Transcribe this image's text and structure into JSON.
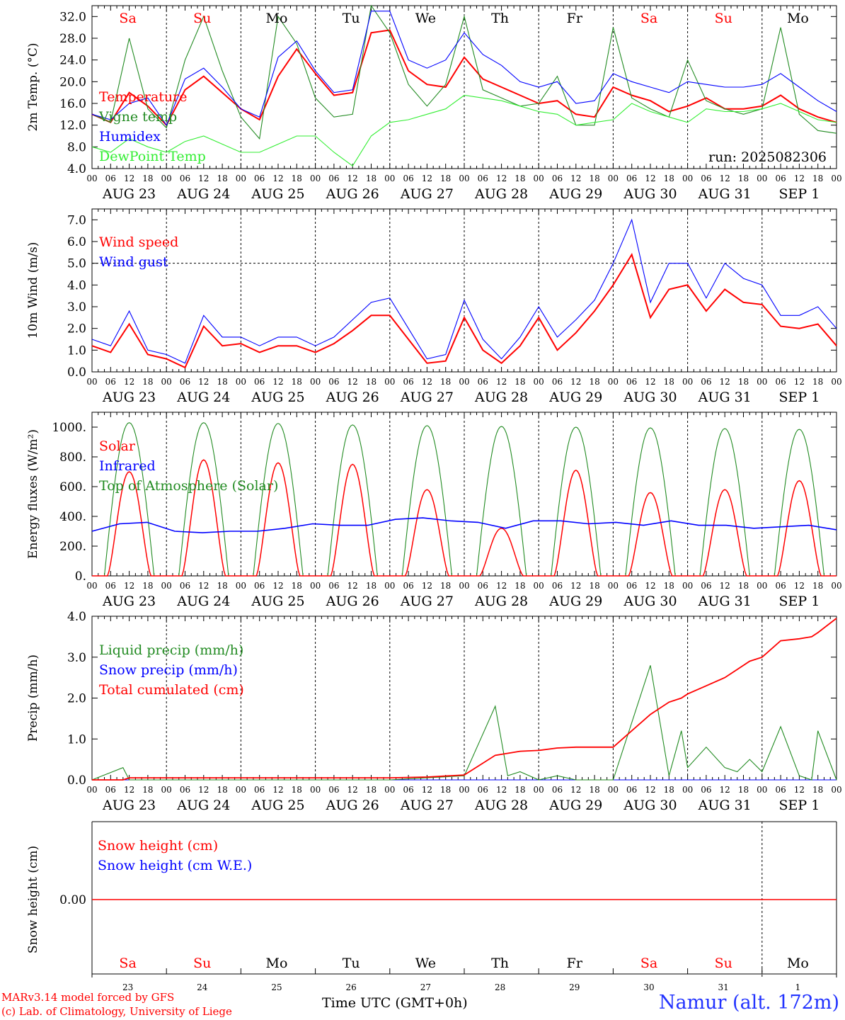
{
  "chart_data": [
    {
      "type": "line",
      "ylabel": "2m Temp. (°C)",
      "ylim": [
        4,
        34
      ],
      "yticks": [
        "4.0",
        "8.0",
        "12.0",
        "16.0",
        "20.0",
        "24.0",
        "28.0",
        "32.0"
      ],
      "ytick_values": [
        4,
        8,
        12,
        16,
        20,
        24,
        28,
        32
      ],
      "legend": [
        {
          "label": "Temperature",
          "color": "#ff0000"
        },
        {
          "label": "Vigne temp",
          "color": "#228b22"
        },
        {
          "label": "Humidex",
          "color": "#0000ff"
        },
        {
          "label": "DewPoint Temp",
          "color": "#33ee33"
        }
      ],
      "annotation": "run: 2025082306",
      "x_hours": [
        0,
        6,
        12,
        18,
        24,
        30,
        36,
        42,
        48,
        54,
        60,
        66,
        72,
        78,
        84,
        90,
        96,
        102,
        108,
        114,
        120,
        126,
        132,
        138,
        144,
        150,
        156,
        162,
        168,
        174,
        180,
        186,
        192,
        198,
        204,
        210,
        216,
        222,
        228,
        234,
        240
      ],
      "series": [
        {
          "name": "Temperature",
          "color": "#ff0000",
          "values": [
            14,
            12.5,
            18,
            15.5,
            12,
            18.5,
            21,
            18,
            15,
            13,
            21,
            26,
            21.5,
            17.5,
            18,
            29,
            29.5,
            22,
            19.5,
            19,
            24.5,
            20.5,
            19,
            17.5,
            16,
            16.5,
            14,
            13.5,
            19,
            17.5,
            16.5,
            14.5,
            15.5,
            17,
            15,
            15,
            15.5,
            17.5,
            15,
            13.5,
            12.5
          ]
        },
        {
          "name": "Vigne temp",
          "color": "#228b22",
          "values": [
            14,
            12.5,
            28,
            15,
            11.5,
            24,
            32,
            22,
            13.5,
            9.5,
            32,
            27,
            17,
            13.5,
            14,
            34,
            29,
            19.5,
            15.5,
            19.5,
            32,
            18.5,
            17,
            15.5,
            16,
            21,
            12,
            12,
            30,
            17,
            15,
            13.5,
            24,
            16.5,
            15,
            14,
            15,
            30,
            14,
            11,
            10.5
          ]
        },
        {
          "name": "Humidex",
          "color": "#0000ff",
          "values": [
            14,
            13,
            16,
            17,
            12,
            20.5,
            22.5,
            19,
            15,
            13.5,
            24.5,
            27.5,
            22,
            18,
            18.5,
            33,
            33,
            24,
            22.5,
            24,
            29,
            25,
            23,
            20,
            19,
            20,
            16,
            16.5,
            21.5,
            20,
            19,
            18,
            20,
            19.5,
            19,
            19,
            19.5,
            21.5,
            19,
            16.5,
            14.5
          ]
        },
        {
          "name": "DewPoint Temp",
          "color": "#33ee33",
          "values": [
            8,
            7,
            9.5,
            8,
            7,
            9,
            10,
            8.5,
            7,
            7,
            8.5,
            10,
            10,
            7,
            4.5,
            10,
            12.5,
            13,
            14,
            15,
            17.5,
            17,
            16.5,
            15.5,
            14.5,
            14,
            12,
            12.5,
            13,
            16,
            14.5,
            13.5,
            12.5,
            15,
            14.5,
            14.5,
            15,
            16,
            14.5,
            13,
            12.5
          ]
        }
      ]
    },
    {
      "type": "line",
      "ylabel": "10m Wind (m/s)",
      "ylim": [
        0,
        7.5
      ],
      "yticks": [
        "0.0",
        "1.0",
        "2.0",
        "3.0",
        "4.0",
        "5.0",
        "6.0",
        "7.0"
      ],
      "ytick_values": [
        0,
        1,
        2,
        3,
        4,
        5,
        6,
        7
      ],
      "reference_line": 5.0,
      "legend": [
        {
          "label": "Wind speed",
          "color": "#ff0000"
        },
        {
          "label": "Wind gust",
          "color": "#0000ff"
        }
      ],
      "x_hours": [
        0,
        6,
        12,
        18,
        24,
        30,
        36,
        42,
        48,
        54,
        60,
        66,
        72,
        78,
        84,
        90,
        96,
        102,
        108,
        114,
        120,
        126,
        132,
        138,
        144,
        150,
        156,
        162,
        168,
        174,
        180,
        186,
        192,
        198,
        204,
        210,
        216,
        222,
        228,
        234,
        240
      ],
      "series": [
        {
          "name": "Wind speed",
          "color": "#ff0000",
          "values": [
            1.2,
            0.9,
            2.2,
            0.8,
            0.6,
            0.2,
            2.1,
            1.2,
            1.3,
            0.9,
            1.2,
            1.2,
            0.9,
            1.3,
            1.9,
            2.6,
            2.6,
            1.5,
            0.4,
            0.5,
            2.5,
            1.0,
            0.4,
            1.2,
            2.5,
            1.0,
            1.8,
            2.8,
            4.0,
            5.4,
            2.5,
            3.8,
            4.0,
            2.8,
            3.8,
            3.2,
            3.1,
            2.1,
            2.0,
            2.2,
            1.2
          ]
        },
        {
          "name": "Wind gust",
          "color": "#0000ff",
          "values": [
            1.5,
            1.2,
            2.8,
            1.0,
            0.8,
            0.4,
            2.6,
            1.6,
            1.6,
            1.2,
            1.6,
            1.6,
            1.2,
            1.6,
            2.4,
            3.2,
            3.4,
            2.0,
            0.6,
            0.8,
            3.3,
            1.5,
            0.6,
            1.6,
            3.0,
            1.6,
            2.4,
            3.3,
            5.0,
            7.0,
            3.2,
            5.0,
            5.0,
            3.4,
            5.0,
            4.3,
            4.0,
            2.6,
            2.6,
            3.0,
            2.0
          ]
        }
      ]
    },
    {
      "type": "line",
      "ylabel": "Energy fluxes (W/m²)",
      "ylim": [
        0,
        1100
      ],
      "yticks": [
        "0.",
        "200.",
        "400.",
        "600.",
        "800.",
        "1000."
      ],
      "ytick_values": [
        0,
        200,
        400,
        600,
        800,
        1000
      ],
      "legend": [
        {
          "label": "Solar",
          "color": "#ff0000"
        },
        {
          "label": "Infrared",
          "color": "#0000ff"
        },
        {
          "label": "Top of Atmosphere (Solar)",
          "color": "#228b22"
        }
      ],
      "toa_daily_peak": [
        1030,
        1030,
        1025,
        1015,
        1010,
        1005,
        1000,
        995,
        990,
        985
      ],
      "solar_daily_peak": [
        700,
        780,
        760,
        750,
        580,
        320,
        710,
        560,
        580,
        640
      ],
      "infrared_hourly_samples": [
        300,
        350,
        360,
        300,
        290,
        300,
        300,
        320,
        350,
        340,
        340,
        380,
        390,
        370,
        360,
        320,
        370,
        370,
        350,
        360,
        340,
        370,
        340,
        340,
        320,
        330,
        340,
        310
      ],
      "series": [
        {
          "name": "Solar",
          "color": "#ff0000",
          "values": [
            700,
            780,
            760,
            750,
            580,
            320,
            710,
            560,
            580,
            640
          ]
        },
        {
          "name": "Infrared",
          "color": "#0000ff",
          "values": [
            300,
            350,
            360,
            300,
            290,
            300,
            300,
            320,
            350,
            340,
            340,
            380,
            390,
            370,
            360,
            320,
            370,
            370,
            350,
            360,
            340,
            370,
            340,
            340,
            320,
            330,
            340,
            310
          ]
        },
        {
          "name": "Top of Atmosphere (Solar)",
          "color": "#228b22",
          "values": [
            1030,
            1030,
            1025,
            1015,
            1010,
            1005,
            1000,
            995,
            990,
            985
          ]
        }
      ]
    },
    {
      "type": "line",
      "ylabel": "Precip (mm/h)",
      "ylim": [
        0,
        4
      ],
      "yticks": [
        "0.0",
        "1.0",
        "2.0",
        "3.0",
        "4.0"
      ],
      "ytick_values": [
        0,
        1,
        2,
        3,
        4
      ],
      "legend": [
        {
          "label": "Liquid precip (mm/h)",
          "color": "#228b22"
        },
        {
          "label": "Snow precip (mm/h)",
          "color": "#0000ff"
        },
        {
          "label": "Total cumulated (cm)",
          "color": "#ff0000"
        }
      ],
      "x_hours": [
        0,
        10,
        12,
        14,
        24,
        48,
        96,
        108,
        120,
        130,
        134,
        138,
        144,
        150,
        156,
        168,
        180,
        186,
        190,
        192,
        198,
        204,
        208,
        212,
        216,
        222,
        228,
        232,
        234,
        240
      ],
      "series": [
        {
          "name": "Liquid precip (mm/h)",
          "color": "#228b22",
          "values": [
            0,
            0.3,
            0,
            0,
            0,
            0,
            0,
            0.05,
            0.1,
            1.8,
            0.1,
            0.2,
            0,
            0.1,
            0,
            0,
            2.8,
            0.1,
            1.2,
            0.3,
            0.8,
            0.3,
            0.2,
            0.5,
            0.2,
            1.3,
            0.1,
            0,
            1.2,
            0
          ]
        },
        {
          "name": "Snow precip (mm/h)",
          "color": "#0000ff",
          "values": [
            0,
            0,
            0,
            0,
            0,
            0,
            0,
            0,
            0,
            0,
            0,
            0,
            0,
            0,
            0,
            0,
            0,
            0,
            0,
            0,
            0,
            0,
            0,
            0,
            0,
            0,
            0,
            0,
            0,
            0
          ]
        },
        {
          "name": "Total cumulated (cm)",
          "color": "#ff0000",
          "values": [
            0,
            0,
            0.05,
            0.05,
            0.05,
            0.05,
            0.05,
            0.07,
            0.12,
            0.6,
            0.65,
            0.7,
            0.72,
            0.78,
            0.8,
            0.8,
            1.6,
            1.9,
            2.0,
            2.1,
            2.3,
            2.5,
            2.7,
            2.9,
            3.0,
            3.4,
            3.45,
            3.5,
            3.6,
            3.95
          ]
        }
      ]
    },
    {
      "type": "line",
      "ylabel": "Snow height (cm)",
      "yticks": [
        "0.00"
      ],
      "ytick_values": [
        0
      ],
      "legend": [
        {
          "label": "Snow height (cm)",
          "color": "#ff0000"
        },
        {
          "label": "Snow height (cm W.E.)",
          "color": "#0000ff"
        }
      ],
      "series": [
        {
          "name": "Snow height (cm)",
          "color": "#ff0000",
          "values": [
            0,
            0
          ]
        }
      ]
    }
  ],
  "x_axis": {
    "hour_ticks": [
      "00",
      "06",
      "12",
      "18"
    ],
    "end_tick": "00",
    "dates": [
      "AUG 23",
      "AUG 24",
      "AUG 25",
      "AUG 26",
      "AUG 27",
      "AUG 28",
      "AUG 29",
      "AUG 30",
      "AUG 31",
      "SEP  1"
    ],
    "weekdays": [
      "Sa",
      "Su",
      "Mo",
      "Tu",
      "We",
      "Th",
      "Fr",
      "Sa",
      "Su",
      "Mo"
    ],
    "weekday_colors": [
      "#ff0000",
      "#ff0000",
      "#000000",
      "#000000",
      "#000000",
      "#000000",
      "#000000",
      "#ff0000",
      "#ff0000",
      "#000000"
    ],
    "day_numbers": [
      "23",
      "24",
      "25",
      "26",
      "27",
      "28",
      "29",
      "30",
      "31",
      "1"
    ],
    "label": "Time UTC (GMT+0h)"
  },
  "footer": {
    "credit_line1": "MARv3.14 model forced by GFS",
    "credit_line2": "(c) Lab. of Climatology, University of Liege",
    "axis_label": "Time UTC (GMT+0h)",
    "location": "Namur (alt. 172m)"
  }
}
